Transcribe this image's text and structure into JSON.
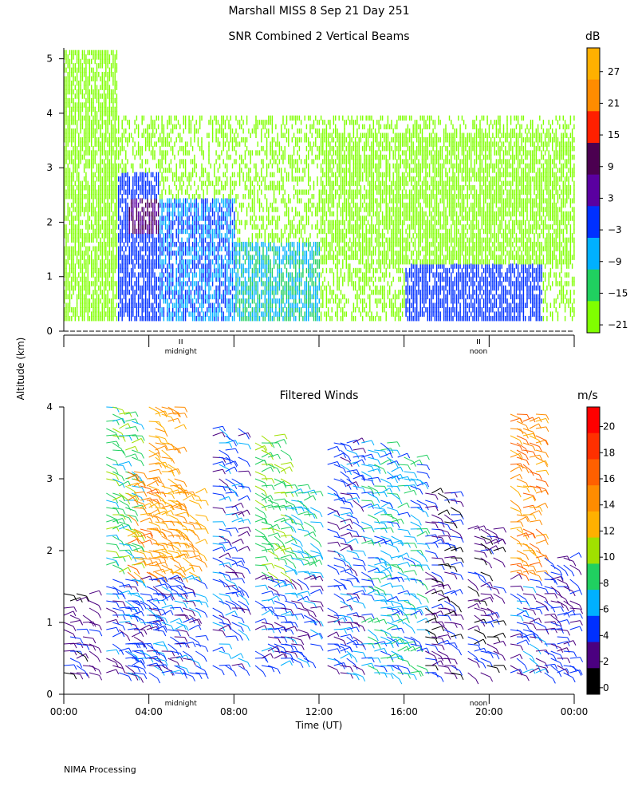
{
  "header": {
    "title": "Marshall MISS    8 Sep 21 Day 251",
    "footer": "NIMA Processing",
    "y_axis_label": "Altitude (km)",
    "x_axis_label": "Time (UT)"
  },
  "snr_panel": {
    "title": "SNR Combined 2 Vertical Beams",
    "unit": "dB",
    "y_ticks": [
      "0",
      "1",
      "2",
      "3",
      "4",
      "5"
    ],
    "ylim": [
      0,
      5.2
    ],
    "markers": [
      "midnight",
      "noon"
    ],
    "colorbar_labels": [
      "27",
      "21",
      "15",
      "9",
      "3",
      "−3",
      "−9",
      "−15",
      "−21"
    ],
    "colorbar_colors": [
      "#ffb000",
      "#ff8c00",
      "#ff2000",
      "#4b0050",
      "#5a00a0",
      "#0030ff",
      "#00b0ff",
      "#20d060",
      "#80ff00"
    ]
  },
  "winds_panel": {
    "title": "Filtered Winds",
    "unit": "m/s",
    "y_ticks": [
      "0",
      "1",
      "2",
      "3",
      "4"
    ],
    "ylim": [
      0,
      4
    ],
    "x_ticks": [
      "00:00",
      "04:00",
      "08:00",
      "12:00",
      "16:00",
      "20:00",
      "00:00"
    ],
    "markers": [
      "midnight",
      "noon"
    ],
    "colorbar_labels": [
      "20",
      "18",
      "16",
      "14",
      "12",
      "10",
      "8",
      "6",
      "4",
      "2",
      "0"
    ],
    "colorbar_colors": [
      "#ff0000",
      "#ff3000",
      "#ff6000",
      "#ff8c00",
      "#ffb000",
      "#a0e000",
      "#20d060",
      "#00b0ff",
      "#0030ff",
      "#4b0080",
      "#000000"
    ]
  },
  "chart_data": [
    {
      "type": "heatmap",
      "title": "SNR Combined 2 Vertical Beams",
      "xlabel": "",
      "ylabel": "Altitude (km)",
      "x_range_hours": [
        0,
        24
      ],
      "ylim": [
        0,
        5.2
      ],
      "value_range_dB": [
        -21,
        33
      ],
      "regions": [
        {
          "time_h": [
            0.0,
            2.5
          ],
          "alt_km": [
            0.2,
            5.2
          ],
          "level_dB": -21
        },
        {
          "time_h": [
            2.5,
            4.5
          ],
          "alt_km": [
            0.2,
            2.9
          ],
          "level_dB": 0
        },
        {
          "time_h": [
            3.0,
            4.5
          ],
          "alt_km": [
            1.8,
            2.4
          ],
          "level_dB": 9
        },
        {
          "time_h": [
            4.5,
            8.0
          ],
          "alt_km": [
            0.2,
            2.4
          ],
          "level_dB": -3
        },
        {
          "time_h": [
            8.0,
            12.0
          ],
          "alt_km": [
            0.2,
            1.6
          ],
          "level_dB": -9
        },
        {
          "time_h": [
            16.0,
            22.5
          ],
          "alt_km": [
            0.2,
            1.2
          ],
          "level_dB": 0
        },
        {
          "time_h": [
            12.0,
            24.0
          ],
          "alt_km": [
            1.2,
            3.6
          ],
          "level_dB": -18
        }
      ]
    },
    {
      "type": "scatter",
      "title": "Filtered Winds",
      "xlabel": "Time (UT)",
      "ylabel": "Altitude (km)",
      "x_ticks": [
        "00:00",
        "04:00",
        "08:00",
        "12:00",
        "16:00",
        "20:00",
        "00:00"
      ],
      "ylim": [
        0,
        4
      ],
      "speed_range_ms": [
        0,
        22
      ],
      "columns": [
        {
          "time_h": 0.6,
          "alt_km": [
            0.3,
            1.5
          ],
          "speed": 2
        },
        {
          "time_h": 2.6,
          "alt_km": [
            0.3,
            4.1
          ],
          "speed": 8
        },
        {
          "time_h": 3.6,
          "alt_km": [
            0.3,
            3.2
          ],
          "speed": 14
        },
        {
          "time_h": 4.6,
          "alt_km": [
            0.3,
            4.1
          ],
          "speed": 13
        },
        {
          "time_h": 5.6,
          "alt_km": [
            0.3,
            3.0
          ],
          "speed": 13
        },
        {
          "time_h": 7.6,
          "alt_km": [
            0.4,
            3.8
          ],
          "speed": 4
        },
        {
          "time_h": 9.6,
          "alt_km": [
            0.4,
            3.7
          ],
          "speed": 9
        },
        {
          "time_h": 11.0,
          "alt_km": [
            0.5,
            3.0
          ],
          "speed": 7
        },
        {
          "time_h": 13.0,
          "alt_km": [
            0.3,
            3.6
          ],
          "speed": 4
        },
        {
          "time_h": 14.6,
          "alt_km": [
            0.3,
            3.6
          ],
          "speed": 6
        },
        {
          "time_h": 16.0,
          "alt_km": [
            0.3,
            3.4
          ],
          "speed": 6
        },
        {
          "time_h": 17.6,
          "alt_km": [
            0.3,
            2.9
          ],
          "speed": 2
        },
        {
          "time_h": 19.6,
          "alt_km": [
            0.3,
            2.4
          ],
          "speed": 2
        },
        {
          "time_h": 21.6,
          "alt_km": [
            0.3,
            4.0
          ],
          "speed": 14
        },
        {
          "time_h": 23.2,
          "alt_km": [
            0.3,
            2.0
          ],
          "speed": 3
        }
      ]
    }
  ]
}
